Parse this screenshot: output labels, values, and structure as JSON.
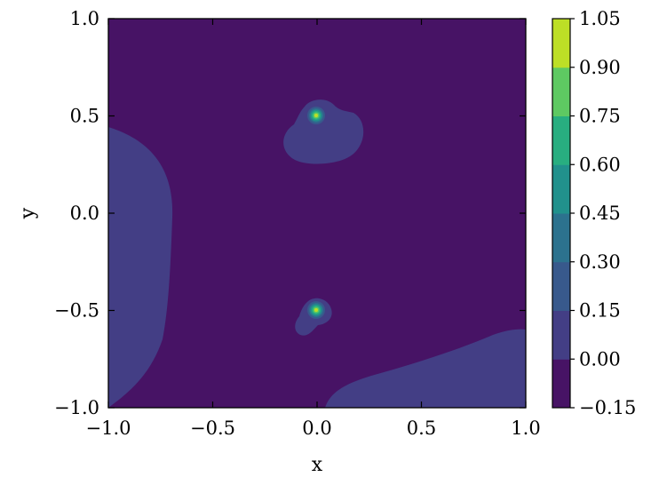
{
  "chart_data": {
    "type": "contour",
    "xlabel": "x",
    "ylabel": "y",
    "xlim": [
      -1.0,
      1.0
    ],
    "ylim": [
      -1.0,
      1.0
    ],
    "xticks": [
      "−1.0",
      "−0.5",
      "0.0",
      "0.5",
      "1.0"
    ],
    "yticks": [
      "−1.0",
      "−0.5",
      "0.0",
      "0.5",
      "1.0"
    ],
    "colormap": "viridis",
    "grid": false,
    "colorbar": {
      "levels": [
        -0.15,
        0.0,
        0.15,
        0.3,
        0.45,
        0.6,
        0.75,
        0.9,
        1.05
      ],
      "tick_labels": [
        "−0.15",
        "0.00",
        "0.15",
        "0.30",
        "0.45",
        "0.60",
        "0.75",
        "0.90",
        "1.05"
      ],
      "colors": [
        "#471365",
        "#433e85",
        "#38598c",
        "#2c728e",
        "#21918c",
        "#28ae80",
        "#5ec962",
        "#bddf26"
      ]
    },
    "features": [
      {
        "kind": "peak",
        "x": 0.0,
        "y": 0.5,
        "max_level": 1.05
      },
      {
        "kind": "peak",
        "x": 0.0,
        "y": -0.5,
        "max_level": 1.05
      },
      {
        "kind": "region",
        "level_band": [
          0.0,
          0.15
        ],
        "location": "left edge, y from -1.0 to 0.45"
      },
      {
        "kind": "region",
        "level_band": [
          0.0,
          0.15
        ],
        "location": "bottom-right corner"
      },
      {
        "kind": "region",
        "level_band": [
          0.0,
          0.15
        ],
        "location": "around (0.0, 0.4)"
      },
      {
        "kind": "region",
        "level_band": [
          0.0,
          0.15
        ],
        "location": "around (0.0, -0.53)"
      }
    ]
  }
}
